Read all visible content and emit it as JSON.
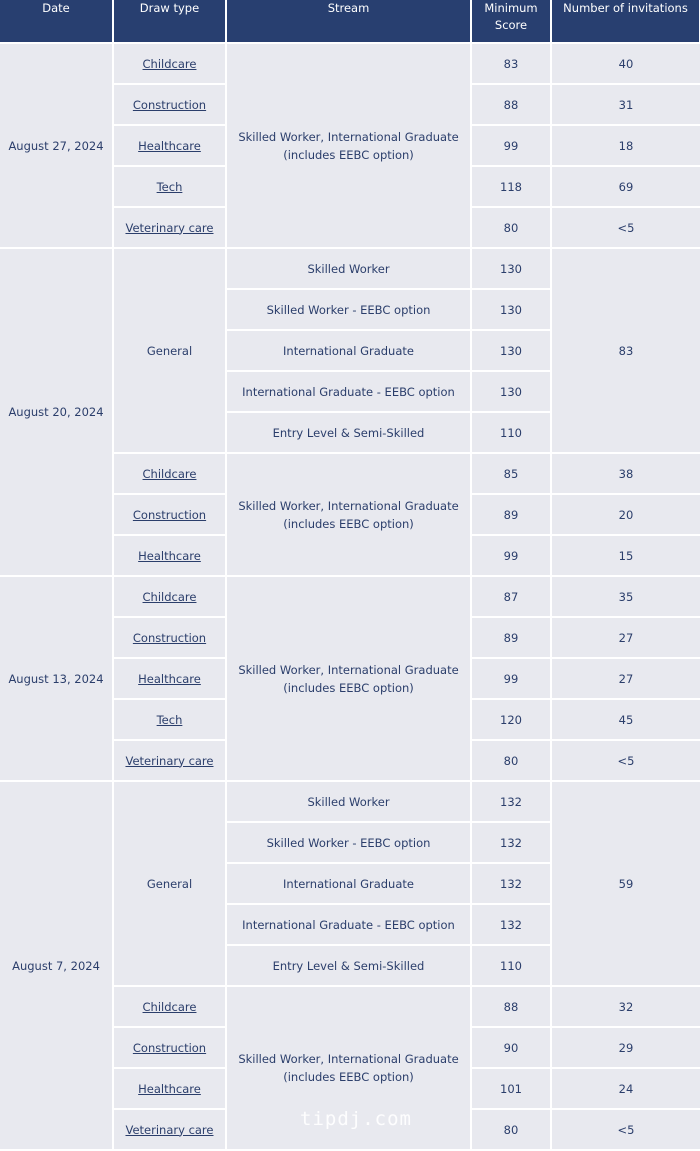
{
  "colors": {
    "header_bg": "#283f70",
    "cell_bg": "#e8e9ef",
    "text": "#2b3e6b",
    "border": "#ffffff"
  },
  "headers": [
    "Date",
    "Draw type",
    "Stream",
    "Minimum Score",
    "Number of invitations"
  ],
  "groups": [
    {
      "date": "August 27, 2024",
      "sections": [
        {
          "kind": "category",
          "stream": "Skilled Worker, International Graduate (includes EEBC option)",
          "rows": [
            {
              "draw_type": "Childcare",
              "min_score": "83",
              "invitations": "40"
            },
            {
              "draw_type": "Construction",
              "min_score": "88",
              "invitations": "31"
            },
            {
              "draw_type": "Healthcare",
              "min_score": "99",
              "invitations": "18"
            },
            {
              "draw_type": "Tech",
              "min_score": "118",
              "invitations": "69"
            },
            {
              "draw_type": "Veterinary care",
              "min_score": "80",
              "invitations": "<5"
            }
          ]
        }
      ]
    },
    {
      "date": "August 20, 2024",
      "sections": [
        {
          "kind": "general",
          "draw_type": "General",
          "invitations": "83",
          "rows": [
            {
              "stream": "Skilled Worker",
              "min_score": "130"
            },
            {
              "stream": "Skilled Worker - EEBC option",
              "min_score": "130"
            },
            {
              "stream": "International Graduate",
              "min_score": "130"
            },
            {
              "stream": "International Graduate - EEBC option",
              "min_score": "130"
            },
            {
              "stream": "Entry Level & Semi-Skilled",
              "min_score": "110"
            }
          ]
        },
        {
          "kind": "category",
          "stream": "Skilled Worker, International Graduate (includes EEBC option)",
          "rows": [
            {
              "draw_type": "Childcare",
              "min_score": "85",
              "invitations": "38"
            },
            {
              "draw_type": "Construction",
              "min_score": "89",
              "invitations": "20"
            },
            {
              "draw_type": "Healthcare",
              "min_score": "99",
              "invitations": "15"
            }
          ]
        }
      ]
    },
    {
      "date": "August 13, 2024",
      "sections": [
        {
          "kind": "category",
          "stream": "Skilled Worker, International Graduate (includes EEBC option)",
          "rows": [
            {
              "draw_type": "Childcare",
              "min_score": "87",
              "invitations": "35"
            },
            {
              "draw_type": "Construction",
              "min_score": "89",
              "invitations": "27"
            },
            {
              "draw_type": "Healthcare",
              "min_score": "99",
              "invitations": "27"
            },
            {
              "draw_type": "Tech",
              "min_score": "120",
              "invitations": "45"
            },
            {
              "draw_type": "Veterinary care",
              "min_score": "80",
              "invitations": "<5"
            }
          ]
        }
      ]
    },
    {
      "date": "August 7, 2024",
      "sections": [
        {
          "kind": "general",
          "draw_type": "General",
          "invitations": "59",
          "rows": [
            {
              "stream": "Skilled Worker",
              "min_score": "132"
            },
            {
              "stream": "Skilled Worker - EEBC option",
              "min_score": "132"
            },
            {
              "stream": "International Graduate",
              "min_score": "132"
            },
            {
              "stream": "International Graduate - EEBC option",
              "min_score": "132"
            },
            {
              "stream": "Entry Level & Semi-Skilled",
              "min_score": "110"
            }
          ]
        },
        {
          "kind": "category",
          "stream": "Skilled Worker, International Graduate (includes EEBC option)",
          "rows": [
            {
              "draw_type": "Childcare",
              "min_score": "88",
              "invitations": "32"
            },
            {
              "draw_type": "Construction",
              "min_score": "90",
              "invitations": "29"
            },
            {
              "draw_type": "Healthcare",
              "min_score": "101",
              "invitations": "24"
            },
            {
              "draw_type": "Veterinary care",
              "min_score": "80",
              "invitations": "<5"
            }
          ]
        }
      ]
    }
  ],
  "watermark": "tipdj.com"
}
